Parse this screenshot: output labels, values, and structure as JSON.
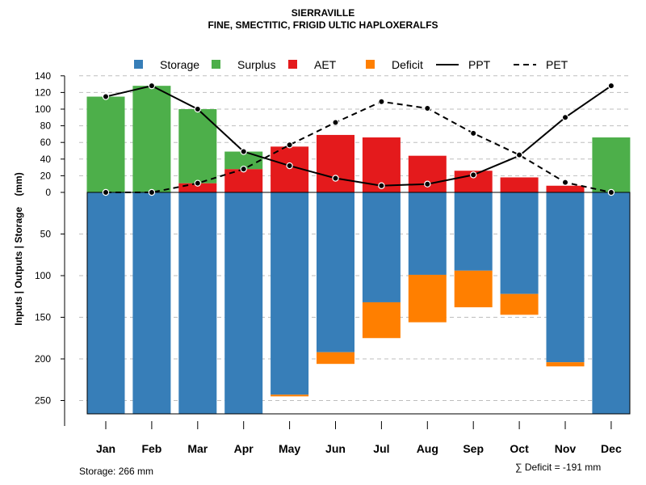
{
  "title": "SIERRAVILLE",
  "subtitle": "FINE, SMECTITIC, FRIGID ULTIC HAPLOXERALFS",
  "footer": {
    "storage_text": "Storage: 266 mm",
    "deficit_text": "∑ Deficit = -191 mm"
  },
  "colors": {
    "storage": "#377EB8",
    "surplus": "#4DAF4A",
    "aet": "#E41A1C",
    "deficit": "#FF7F00",
    "line": "#000000",
    "grid": "#bebebe"
  },
  "chart_data": {
    "type": "bar",
    "subtype": "water-balance combined bar and line",
    "ylabel": "Inputs | Outputs | Storage    (mm)",
    "xlabel": "",
    "legend_position": "top",
    "legend": [
      "Storage",
      "Surplus",
      "AET",
      "Deficit",
      "PPT",
      "PET"
    ],
    "categories": [
      "Jan",
      "Feb",
      "Mar",
      "Apr",
      "May",
      "Jun",
      "Jul",
      "Aug",
      "Sep",
      "Oct",
      "Nov",
      "Dec"
    ],
    "y_ticks_upper": [
      0,
      20,
      40,
      60,
      80,
      100,
      120,
      140
    ],
    "y_ticks_lower": [
      50,
      100,
      150,
      200,
      250
    ],
    "ylim_upper": [
      0,
      140
    ],
    "ylim_lower": [
      0,
      266
    ],
    "grid": true,
    "series_above_zero": [
      {
        "name": "AET",
        "values": [
          0,
          0,
          11,
          28,
          55,
          69,
          66,
          44,
          26,
          18,
          8,
          0
        ]
      },
      {
        "name": "Surplus",
        "values": [
          115,
          128,
          89,
          21,
          0,
          0,
          0,
          0,
          0,
          0,
          0,
          66
        ]
      }
    ],
    "series_below_zero": [
      {
        "name": "Storage",
        "values": [
          266,
          266,
          266,
          266,
          243,
          192,
          132,
          99,
          94,
          122,
          204,
          266
        ]
      },
      {
        "name": "Deficit",
        "values": [
          0,
          0,
          0,
          0,
          2,
          14,
          43,
          57,
          44,
          25,
          5,
          0
        ]
      }
    ],
    "lines": [
      {
        "name": "PPT",
        "style": "solid",
        "values": [
          115,
          128,
          100,
          49,
          32,
          17,
          8,
          10,
          21,
          44,
          90,
          128
        ]
      },
      {
        "name": "PET",
        "style": "dashed",
        "values": [
          0,
          0,
          11,
          28,
          57,
          84,
          109,
          101,
          71,
          45,
          12,
          0
        ]
      }
    ]
  }
}
